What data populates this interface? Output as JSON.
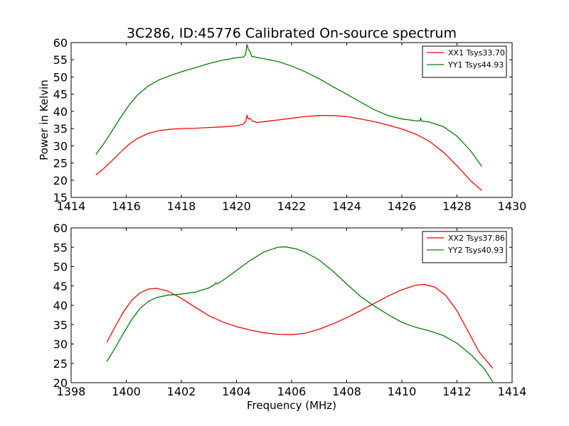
{
  "chart_data": [
    {
      "type": "line",
      "title": "3C286, ID:45776 Calibrated On-source spectrum",
      "xlabel": "",
      "ylabel": "Power in Kelvin",
      "xlim": [
        1414,
        1430
      ],
      "ylim": [
        15,
        60
      ],
      "xticks": [
        1414,
        1416,
        1418,
        1420,
        1422,
        1424,
        1426,
        1428,
        1430
      ],
      "yticks": [
        15,
        20,
        25,
        30,
        35,
        40,
        45,
        50,
        55,
        60
      ],
      "grid": false,
      "legend_position": "top-right",
      "series": [
        {
          "name": "XX1 Tsys33.70",
          "color": "#ff0000",
          "points": [
            [
              1414.9,
              21.5
            ],
            [
              1415.2,
              23.5
            ],
            [
              1415.5,
              25.8
            ],
            [
              1415.8,
              28.2
            ],
            [
              1416.1,
              30.4
            ],
            [
              1416.4,
              32.1
            ],
            [
              1416.8,
              33.6
            ],
            [
              1417.2,
              34.4
            ],
            [
              1417.6,
              34.8
            ],
            [
              1418,
              35.0
            ],
            [
              1418.5,
              35.1
            ],
            [
              1419,
              35.3
            ],
            [
              1419.5,
              35.5
            ],
            [
              1420,
              35.8
            ],
            [
              1420.25,
              36.3
            ],
            [
              1420.33,
              37.0
            ],
            [
              1420.38,
              38.8
            ],
            [
              1420.43,
              37.8
            ],
            [
              1420.5,
              37.9
            ],
            [
              1420.6,
              37.1
            ],
            [
              1420.75,
              36.8
            ],
            [
              1421,
              37.0
            ],
            [
              1421.5,
              37.5
            ],
            [
              1422,
              38.0
            ],
            [
              1422.5,
              38.5
            ],
            [
              1423,
              38.8
            ],
            [
              1423.5,
              38.8
            ],
            [
              1424,
              38.5
            ],
            [
              1424.5,
              37.8
            ],
            [
              1425,
              37.0
            ],
            [
              1425.5,
              36.0
            ],
            [
              1426,
              34.9
            ],
            [
              1426.5,
              33.4
            ],
            [
              1427,
              31.3
            ],
            [
              1427.5,
              28.2
            ],
            [
              1428,
              24.2
            ],
            [
              1428.5,
              19.8
            ],
            [
              1428.9,
              17.0
            ]
          ]
        },
        {
          "name": "YY1 Tsys44.93",
          "color": "#008000",
          "points": [
            [
              1414.9,
              27.5
            ],
            [
              1415.2,
              30.8
            ],
            [
              1415.5,
              34.5
            ],
            [
              1415.8,
              38.3
            ],
            [
              1416.1,
              41.8
            ],
            [
              1416.4,
              44.7
            ],
            [
              1416.8,
              47.4
            ],
            [
              1417.2,
              49.2
            ],
            [
              1417.6,
              50.4
            ],
            [
              1418,
              51.5
            ],
            [
              1418.5,
              52.7
            ],
            [
              1419,
              53.9
            ],
            [
              1419.5,
              54.9
            ],
            [
              1420,
              55.6
            ],
            [
              1420.25,
              55.8
            ],
            [
              1420.33,
              56.5
            ],
            [
              1420.38,
              59.5
            ],
            [
              1420.43,
              58.0
            ],
            [
              1420.5,
              57.3
            ],
            [
              1420.55,
              56.0
            ],
            [
              1421,
              55.3
            ],
            [
              1421.5,
              54.5
            ],
            [
              1422,
              53.2
            ],
            [
              1422.5,
              51.5
            ],
            [
              1423,
              49.5
            ],
            [
              1423.5,
              47.2
            ],
            [
              1424,
              45.0
            ],
            [
              1424.5,
              42.7
            ],
            [
              1425,
              40.5
            ],
            [
              1425.5,
              38.8
            ],
            [
              1426,
              37.8
            ],
            [
              1426.5,
              37.3
            ],
            [
              1426.65,
              37.2
            ],
            [
              1426.68,
              38.0
            ],
            [
              1426.72,
              37.2
            ],
            [
              1427,
              36.9
            ],
            [
              1427.5,
              35.6
            ],
            [
              1428,
              32.8
            ],
            [
              1428.5,
              28.5
            ],
            [
              1428.9,
              24.0
            ]
          ]
        }
      ]
    },
    {
      "type": "line",
      "title": "",
      "xlabel": "Frequency (MHz)",
      "ylabel": "",
      "xlim": [
        1398,
        1414
      ],
      "ylim": [
        20,
        60
      ],
      "xticks": [
        1398,
        1400,
        1402,
        1404,
        1406,
        1408,
        1410,
        1412,
        1414
      ],
      "yticks": [
        20,
        25,
        30,
        35,
        40,
        45,
        50,
        55,
        60
      ],
      "grid": false,
      "legend_position": "top-right",
      "series": [
        {
          "name": "XX2 Tsys37.86",
          "color": "#ff0000",
          "points": [
            [
              1399.3,
              30.5
            ],
            [
              1399.6,
              34.5
            ],
            [
              1399.9,
              38.3
            ],
            [
              1400.2,
              41.3
            ],
            [
              1400.5,
              43.2
            ],
            [
              1400.8,
              44.2
            ],
            [
              1401.1,
              44.4
            ],
            [
              1401.5,
              43.7
            ],
            [
              1402,
              41.8
            ],
            [
              1402.5,
              39.5
            ],
            [
              1403,
              37.3
            ],
            [
              1403.5,
              35.7
            ],
            [
              1404,
              34.5
            ],
            [
              1404.5,
              33.6
            ],
            [
              1405,
              32.9
            ],
            [
              1405.5,
              32.5
            ],
            [
              1406,
              32.4
            ],
            [
              1406.5,
              32.8
            ],
            [
              1407,
              33.8
            ],
            [
              1407.5,
              35.2
            ],
            [
              1408,
              36.8
            ],
            [
              1408.5,
              38.6
            ],
            [
              1409,
              40.5
            ],
            [
              1409.5,
              42.4
            ],
            [
              1410,
              44.0
            ],
            [
              1410.5,
              45.2
            ],
            [
              1410.8,
              45.4
            ],
            [
              1411.2,
              44.7
            ],
            [
              1411.6,
              42.5
            ],
            [
              1412,
              38.6
            ],
            [
              1412.4,
              33.3
            ],
            [
              1412.8,
              28.0
            ],
            [
              1413.3,
              23.7
            ]
          ]
        },
        {
          "name": "YY2 Tsys40.93",
          "color": "#008000",
          "points": [
            [
              1399.3,
              25.5
            ],
            [
              1399.6,
              29.0
            ],
            [
              1399.9,
              32.8
            ],
            [
              1400.2,
              36.3
            ],
            [
              1400.5,
              39.2
            ],
            [
              1400.8,
              41.0
            ],
            [
              1401.1,
              42.0
            ],
            [
              1401.5,
              42.6
            ],
            [
              1402,
              42.9
            ],
            [
              1402.5,
              43.4
            ],
            [
              1403,
              44.5
            ],
            [
              1403.2,
              45.3
            ],
            [
              1403.25,
              45.8
            ],
            [
              1403.3,
              45.5
            ],
            [
              1403.5,
              46.4
            ],
            [
              1404,
              49.0
            ],
            [
              1404.5,
              51.6
            ],
            [
              1405,
              53.8
            ],
            [
              1405.5,
              55.0
            ],
            [
              1405.8,
              55.1
            ],
            [
              1406.2,
              54.5
            ],
            [
              1406.5,
              53.7
            ],
            [
              1407,
              51.7
            ],
            [
              1407.5,
              48.8
            ],
            [
              1408,
              45.5
            ],
            [
              1408.5,
              42.3
            ],
            [
              1409,
              39.8
            ],
            [
              1409.5,
              37.6
            ],
            [
              1410,
              35.6
            ],
            [
              1410.5,
              34.3
            ],
            [
              1411,
              33.4
            ],
            [
              1411.5,
              32.2
            ],
            [
              1412,
              30.2
            ],
            [
              1412.5,
              27.3
            ],
            [
              1413,
              23.5
            ],
            [
              1413.3,
              20.2
            ]
          ]
        }
      ]
    }
  ]
}
